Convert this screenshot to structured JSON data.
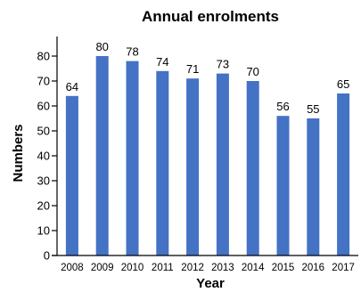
{
  "chart_data": {
    "type": "bar",
    "title": "Annual enrolments",
    "xlabel": "Year",
    "ylabel": "Numbers",
    "categories": [
      "2008",
      "2009",
      "2010",
      "2011",
      "2012",
      "2013",
      "2014",
      "2015",
      "2016",
      "2017"
    ],
    "values": [
      64,
      80,
      78,
      74,
      71,
      73,
      70,
      56,
      55,
      65
    ],
    "ylim": [
      0,
      85
    ],
    "yticks": [
      0,
      10,
      20,
      30,
      40,
      50,
      60,
      70,
      80
    ],
    "grid": false,
    "legend": "none",
    "bar_color": "#4472C4",
    "data_labels": true
  }
}
